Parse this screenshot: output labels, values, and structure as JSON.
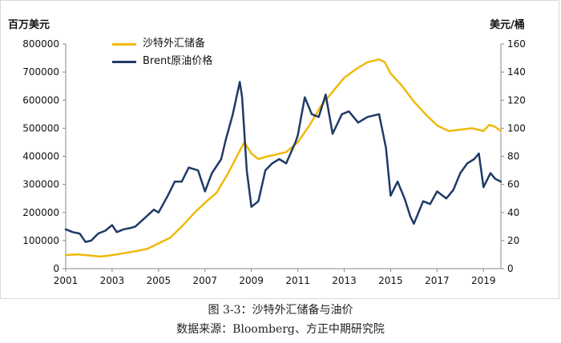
{
  "caption": {
    "title": "图 3-3：沙特外汇储备与油价",
    "source": "数据来源：Bloomberg、方正中期研究院"
  },
  "chart_data": {
    "type": "line",
    "left_axis_label": "百万美元",
    "right_axis_label": "美元/桶",
    "legend_position": "top-left",
    "grid": false,
    "xlim": [
      2001,
      2019.75
    ],
    "x_ticks": [
      "2001",
      "2003",
      "2005",
      "2007",
      "2009",
      "2011",
      "2013",
      "2015",
      "2017",
      "2019"
    ],
    "y_left_lim": [
      0,
      800000
    ],
    "y_left_ticks": [
      "0",
      "100000",
      "200000",
      "300000",
      "400000",
      "500000",
      "600000",
      "700000",
      "800000"
    ],
    "y_right_lim": [
      0,
      160
    ],
    "y_right_ticks": [
      "0",
      "20",
      "40",
      "60",
      "80",
      "100",
      "120",
      "140",
      "160"
    ],
    "series": [
      {
        "name": "沙特外汇储备",
        "axis": "left",
        "color": "#f0b90b",
        "points": [
          [
            2001.0,
            48000
          ],
          [
            2001.5,
            51000
          ],
          [
            2002.0,
            47000
          ],
          [
            2002.5,
            43000
          ],
          [
            2003.0,
            48000
          ],
          [
            2003.5,
            55000
          ],
          [
            2004.0,
            62000
          ],
          [
            2004.5,
            70000
          ],
          [
            2005.0,
            90000
          ],
          [
            2005.5,
            110000
          ],
          [
            2006.0,
            150000
          ],
          [
            2006.5,
            195000
          ],
          [
            2007.0,
            235000
          ],
          [
            2007.5,
            270000
          ],
          [
            2008.0,
            340000
          ],
          [
            2008.5,
            420000
          ],
          [
            2008.7,
            450000
          ],
          [
            2009.0,
            410000
          ],
          [
            2009.3,
            390000
          ],
          [
            2009.7,
            400000
          ],
          [
            2010.0,
            405000
          ],
          [
            2010.5,
            415000
          ],
          [
            2011.0,
            450000
          ],
          [
            2011.5,
            510000
          ],
          [
            2012.0,
            580000
          ],
          [
            2012.5,
            630000
          ],
          [
            2013.0,
            680000
          ],
          [
            2013.5,
            710000
          ],
          [
            2014.0,
            735000
          ],
          [
            2014.5,
            745000
          ],
          [
            2014.75,
            735000
          ],
          [
            2015.0,
            695000
          ],
          [
            2015.5,
            650000
          ],
          [
            2016.0,
            595000
          ],
          [
            2016.5,
            550000
          ],
          [
            2017.0,
            510000
          ],
          [
            2017.5,
            490000
          ],
          [
            2018.0,
            495000
          ],
          [
            2018.5,
            500000
          ],
          [
            2019.0,
            490000
          ],
          [
            2019.25,
            512000
          ],
          [
            2019.5,
            505000
          ],
          [
            2019.75,
            490000
          ]
        ]
      },
      {
        "name": "Brent原油价格",
        "axis": "right",
        "color": "#1f3a66",
        "points": [
          [
            2001.0,
            28
          ],
          [
            2001.3,
            26
          ],
          [
            2001.6,
            25
          ],
          [
            2001.85,
            19
          ],
          [
            2002.1,
            20
          ],
          [
            2002.4,
            25
          ],
          [
            2002.7,
            27
          ],
          [
            2003.0,
            31
          ],
          [
            2003.2,
            26
          ],
          [
            2003.5,
            28
          ],
          [
            2003.8,
            29
          ],
          [
            2004.0,
            30
          ],
          [
            2004.4,
            36
          ],
          [
            2004.8,
            42
          ],
          [
            2005.0,
            40
          ],
          [
            2005.4,
            52
          ],
          [
            2005.7,
            62
          ],
          [
            2006.0,
            62
          ],
          [
            2006.3,
            72
          ],
          [
            2006.7,
            70
          ],
          [
            2007.0,
            55
          ],
          [
            2007.3,
            68
          ],
          [
            2007.7,
            78
          ],
          [
            2007.9,
            92
          ],
          [
            2008.2,
            110
          ],
          [
            2008.5,
            133
          ],
          [
            2008.6,
            122
          ],
          [
            2008.8,
            70
          ],
          [
            2009.0,
            44
          ],
          [
            2009.3,
            48
          ],
          [
            2009.6,
            70
          ],
          [
            2009.9,
            75
          ],
          [
            2010.2,
            78
          ],
          [
            2010.5,
            75
          ],
          [
            2010.9,
            90
          ],
          [
            2011.0,
            95
          ],
          [
            2011.3,
            122
          ],
          [
            2011.6,
            110
          ],
          [
            2011.9,
            108
          ],
          [
            2012.2,
            124
          ],
          [
            2012.5,
            96
          ],
          [
            2012.9,
            110
          ],
          [
            2013.2,
            112
          ],
          [
            2013.6,
            104
          ],
          [
            2014.0,
            108
          ],
          [
            2014.5,
            110
          ],
          [
            2014.8,
            86
          ],
          [
            2015.0,
            52
          ],
          [
            2015.3,
            62
          ],
          [
            2015.6,
            50
          ],
          [
            2015.85,
            37
          ],
          [
            2016.0,
            32
          ],
          [
            2016.4,
            48
          ],
          [
            2016.7,
            46
          ],
          [
            2017.0,
            55
          ],
          [
            2017.4,
            50
          ],
          [
            2017.7,
            56
          ],
          [
            2018.0,
            68
          ],
          [
            2018.3,
            75
          ],
          [
            2018.6,
            78
          ],
          [
            2018.8,
            82
          ],
          [
            2019.0,
            58
          ],
          [
            2019.3,
            68
          ],
          [
            2019.5,
            64
          ],
          [
            2019.75,
            62
          ]
        ]
      }
    ]
  }
}
